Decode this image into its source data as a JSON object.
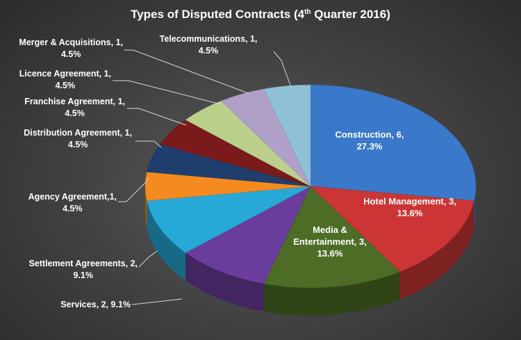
{
  "chart_data": {
    "type": "pie",
    "title": "Types of Disputed Contracts (4",
    "title_sup": "th",
    "title_end": " Quarter 2016)",
    "three_d": true,
    "slices": [
      {
        "name": "Construction",
        "value": 6,
        "percent": "27.3%",
        "label_l1": "Construction, 6,",
        "label_l2": "27.3%",
        "color": "#3a78c9"
      },
      {
        "name": "Hotel Management",
        "value": 3,
        "percent": "13.6%",
        "label_l1": "Hotel Management, 3,",
        "label_l2": "13.6%",
        "color": "#cc3535"
      },
      {
        "name": "Media & Entertainment",
        "value": 3,
        "percent": "13.6%",
        "label_l1": "Media &",
        "label_l2": "Entertainment, 3,",
        "label_l3": "13.6%",
        "color": "#4d6d26"
      },
      {
        "name": "Services",
        "value": 2,
        "percent": "9.1%",
        "label_l1": "Services, 2, 9.1%",
        "color": "#6a3c9c"
      },
      {
        "name": "Settlement Agreements",
        "value": 2,
        "percent": "9.1%",
        "label_l1": "Settlement Agreements, 2,",
        "label_l2": "9.1%",
        "color": "#27a9d8"
      },
      {
        "name": "Agency Agreement",
        "value": 1,
        "percent": "4.5%",
        "label_l1": "Agency Agreement,1,",
        "label_l2": "4.5%",
        "color": "#f58a1f"
      },
      {
        "name": "Distribution Agreement",
        "value": 1,
        "percent": "4.5%",
        "label_l1": "Distribution Agreement, 1,",
        "label_l2": "4.5%",
        "color": "#1e3f6e"
      },
      {
        "name": "Franchise Agreement",
        "value": 1,
        "percent": "4.5%",
        "label_l1": "Franchise Agreement, 1,",
        "label_l2": "4.5%",
        "color": "#7a1a1a"
      },
      {
        "name": "Licence Agreement",
        "value": 1,
        "percent": "4.5%",
        "label_l1": "Licence Agreement, 1,",
        "label_l2": "4.5%",
        "color": "#bcd08e"
      },
      {
        "name": "Merger & Acquisitions",
        "value": 1,
        "percent": "4.5%",
        "label_l1": "Merger &  Acquisitions, 1,",
        "label_l2": "4.5%",
        "color": "#b0a0c8"
      },
      {
        "name": "Telecommunications",
        "value": 1,
        "percent": "4.5%",
        "label_l1": "Telecommunications, 1,",
        "label_l2": "4.5%",
        "color": "#8fc1d6"
      }
    ]
  }
}
